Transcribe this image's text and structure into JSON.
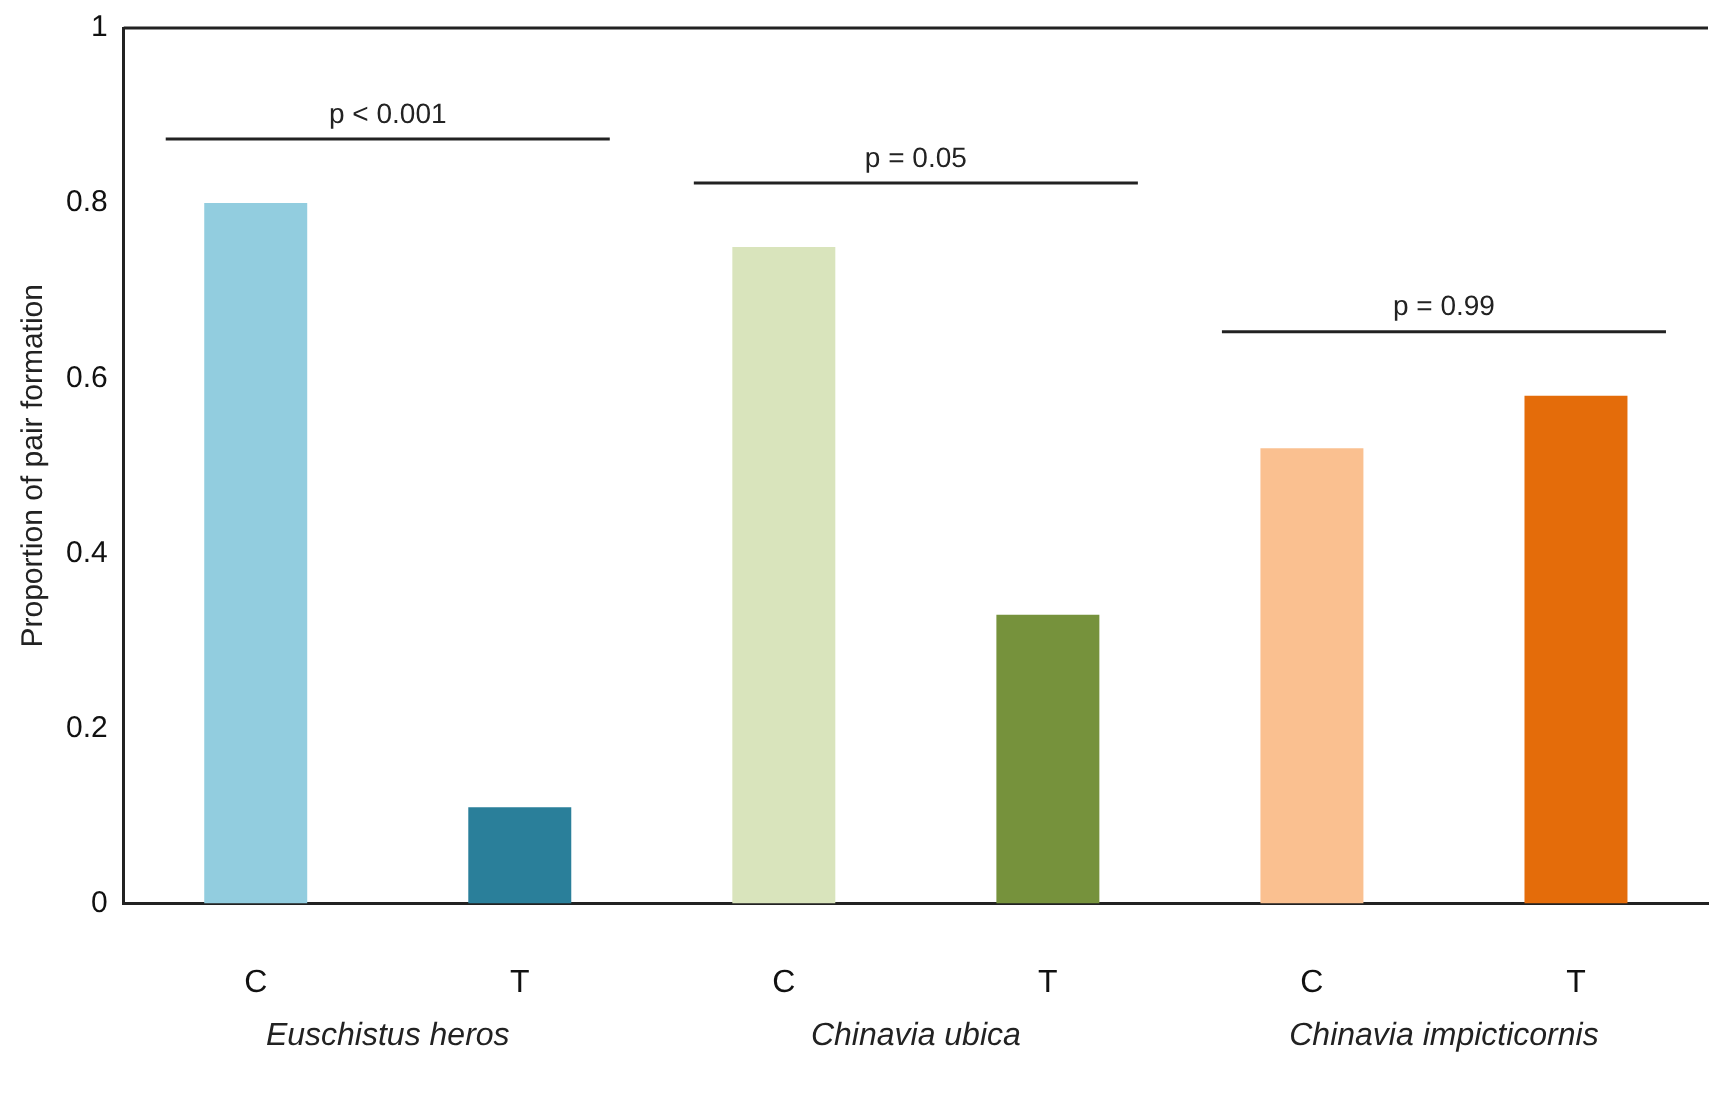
{
  "chart_data": {
    "type": "bar",
    "ylabel": "Proportion of pair formation",
    "categories": [
      "C",
      "T",
      "C",
      "T",
      "C",
      "T"
    ],
    "values": [
      0.8,
      0.11,
      0.75,
      0.33,
      0.52,
      0.58
    ],
    "colors": [
      "#92cddf",
      "#2a7f9a",
      "#d9e4bc",
      "#76923c",
      "#fac090",
      "#e46c0a"
    ],
    "ylim": [
      0,
      1
    ],
    "yticks": [
      0,
      {
        "value": 0.2,
        "label": "0.2"
      },
      {
        "value": 0.4,
        "label": "0.4"
      },
      {
        "value": 0.6,
        "label": "0.6"
      },
      {
        "value": 0.8,
        "label": "0.8"
      },
      1
    ],
    "grid": false,
    "legend": false,
    "annotations": [
      "p < 0.001",
      "p = 0.05",
      "p = 0.99",
      "Euschistus heros",
      "Chinavia ubica",
      "Chinavia impicticornis"
    ]
  }
}
